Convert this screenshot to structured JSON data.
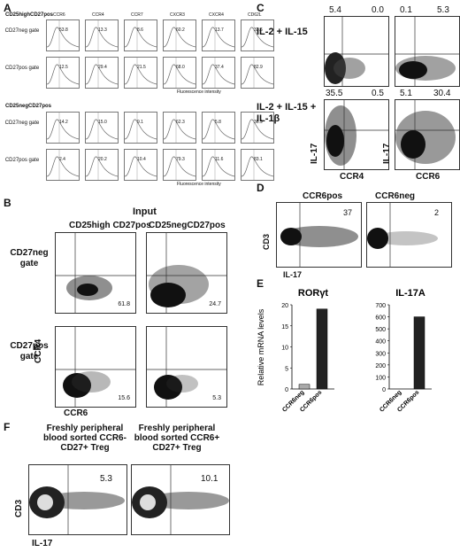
{
  "panelA": {
    "letter": "A",
    "group1_title": "CD25highCD27pos",
    "group2_title": "CD25negCD27pos",
    "markers": [
      "CCR6",
      "CCR4",
      "CCR7",
      "CXCR3",
      "CXCR4",
      "CD62L"
    ],
    "row_labels": [
      "CD27neg gate",
      "CD27pos gate",
      "CD27neg gate",
      "CD27pos gate"
    ],
    "values": [
      [
        "53.8",
        "13.3",
        "8.6",
        "60.2",
        "13.7",
        "33.6"
      ],
      [
        "12.5",
        "29.4",
        "21.5",
        "68.0",
        "37.4",
        "82.9"
      ],
      [
        "14.2",
        "15.0",
        "9.1",
        "62.3",
        "5.8",
        "36.9"
      ],
      [
        "2.4",
        "20.2",
        "10.4",
        "79.3",
        "11.6",
        "83.1"
      ]
    ],
    "xaxis": "Fluorescence intensity"
  },
  "panelB": {
    "letter": "B",
    "input_label": "Input",
    "col1": "CD25high CD27pos",
    "col2": "CD25negCD27pos",
    "row1": "CD27neg gate",
    "row2": "CD27pos gate",
    "values": [
      "61.8",
      "24.7",
      "15.6",
      "5.3"
    ],
    "ylabel": "CCR4",
    "xlabel": "CCR6"
  },
  "panelC": {
    "letter": "C",
    "row1_label": "IL-2 + IL-15",
    "row2_label": "IL-2 + IL-15 + IL-1β",
    "top_values": [
      [
        "5.4",
        "0.0"
      ],
      [
        "0.1",
        "5.3"
      ]
    ],
    "bottom_values": [
      [
        "35.5",
        "0.5"
      ],
      [
        "5.1",
        "30.4"
      ]
    ],
    "ylabel": "IL-17",
    "xlabel_left": "CCR4",
    "xlabel_right": "CCR6"
  },
  "panelD": {
    "letter": "D",
    "col1": "CCR6pos",
    "col2": "CCR6neg",
    "values": [
      "37",
      "2"
    ],
    "ylabel": "CD3",
    "xlabel": "IL-17"
  },
  "panelE": {
    "letter": "E",
    "ylabel": "Relative mRNA levels",
    "charts": [
      {
        "title": "RORγt",
        "categories": [
          "CCR6neg",
          "CCR6pos"
        ],
        "values": [
          1.1,
          19
        ],
        "ylim": [
          0,
          20
        ],
        "ticks": [
          "0",
          "5",
          "10",
          "15",
          "20"
        ],
        "colors": [
          "#aaaaaa",
          "#222222"
        ]
      },
      {
        "title": "IL-17A",
        "categories": [
          "CCR6neg",
          "CCR6pos"
        ],
        "values": [
          0,
          600
        ],
        "ylim": [
          0,
          700
        ],
        "ticks": [
          "0",
          "100",
          "200",
          "300",
          "400",
          "500",
          "600",
          "700"
        ],
        "colors": [
          "#aaaaaa",
          "#222222"
        ]
      }
    ]
  },
  "chart_data": [
    {
      "type": "bar",
      "title": "RORγt",
      "ylabel": "Relative mRNA levels",
      "categories": [
        "CCR6neg",
        "CCR6pos"
      ],
      "values": [
        1.1,
        19
      ],
      "ylim": [
        0,
        20
      ]
    },
    {
      "type": "bar",
      "title": "IL-17A",
      "categories": [
        "CCR6neg",
        "CCR6pos"
      ],
      "values": [
        0,
        600
      ],
      "ylim": [
        0,
        700
      ]
    }
  ],
  "panelF": {
    "letter": "F",
    "title1": "Freshly peripheral blood sorted CCR6- CD27+ Treg",
    "title2": "Freshly peripheral blood sorted CCR6+ CD27+ Treg",
    "values": [
      "5.3",
      "10.1"
    ],
    "ylabel": "CD3",
    "xlabel": "IL-17"
  }
}
